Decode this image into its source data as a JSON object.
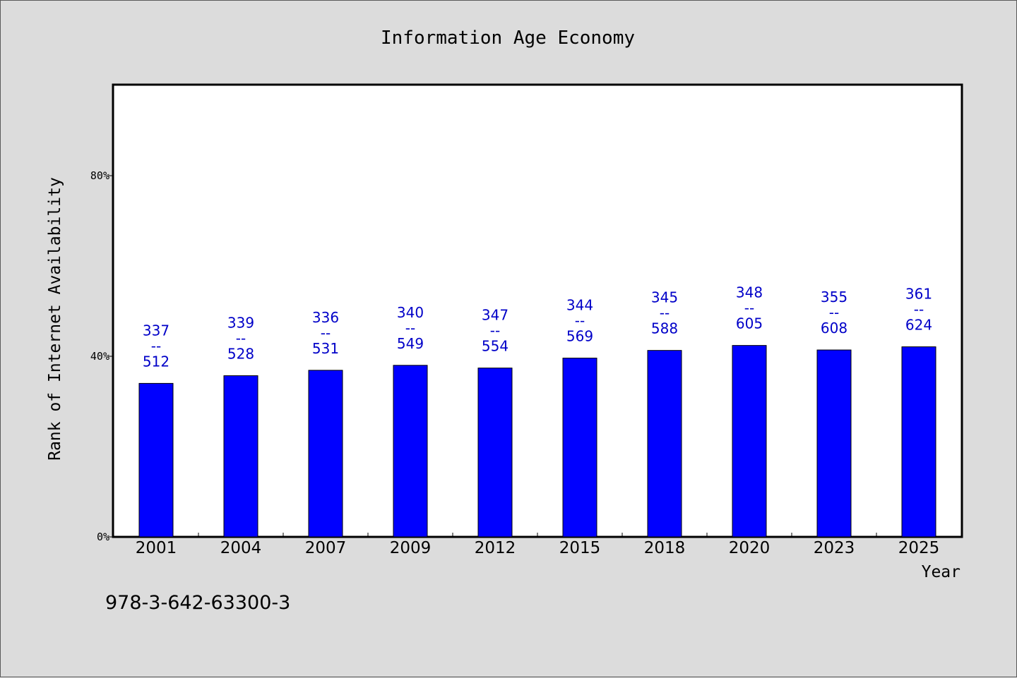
{
  "chart_data": {
    "type": "bar",
    "title": "Information Age Economy",
    "xlabel": "Year",
    "ylabel": "Rank of Internet Availability",
    "categories": [
      "2001",
      "2004",
      "2007",
      "2009",
      "2012",
      "2015",
      "2018",
      "2020",
      "2023",
      "2025"
    ],
    "values": [
      34,
      35.7,
      36.9,
      38,
      37.4,
      39.6,
      41.3,
      42.4,
      41.4,
      42.1
    ],
    "data_labels": [
      [
        "337",
        "--",
        "512"
      ],
      [
        "339",
        "--",
        "528"
      ],
      [
        "336",
        "--",
        "531"
      ],
      [
        "340",
        "--",
        "549"
      ],
      [
        "347",
        "--",
        "554"
      ],
      [
        "344",
        "--",
        "569"
      ],
      [
        "345",
        "--",
        "588"
      ],
      [
        "348",
        "--",
        "605"
      ],
      [
        "355",
        "--",
        "608"
      ],
      [
        "361",
        "--",
        "624"
      ]
    ],
    "yticks": [
      0,
      40,
      80
    ],
    "ytick_labels": [
      "0%",
      "40%",
      "80%"
    ],
    "ylim": [
      0,
      100
    ],
    "grid": false,
    "bar_color": "#0000ff",
    "label_color": "#0000c8"
  },
  "footer": {
    "isbn": "978-3-642-63300-3"
  }
}
